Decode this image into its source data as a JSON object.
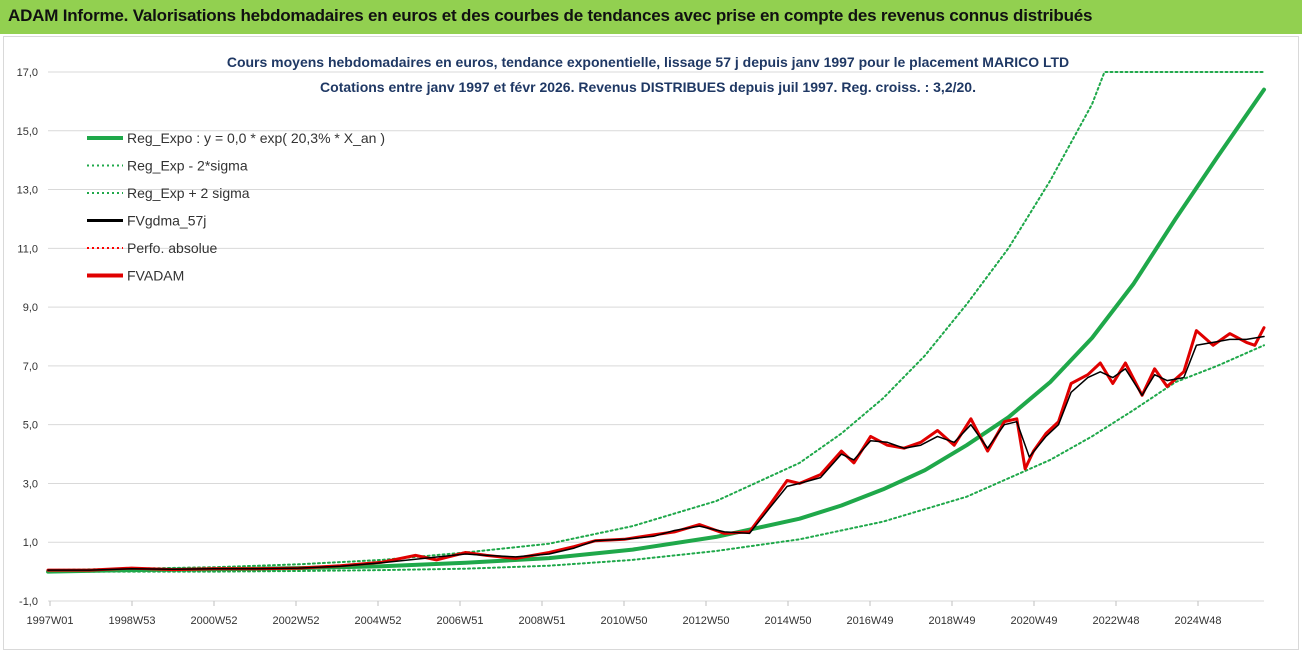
{
  "banner": {
    "title": "ADAM Informe. Valorisations hebdomadaires en euros et des courbes de tendances avec prise en compte des revenus connus distribués"
  },
  "colors": {
    "banner_bg": "#92d050",
    "trend": "#1fa84a",
    "band": "#1fa84a",
    "fvgdma": "#000000",
    "perfo": "#ff0000",
    "fvadam": "#e00000",
    "title": "#1f3864"
  },
  "chart_data": {
    "type": "line",
    "title": "Cours moyens hebdomadaires en euros, tendance exponentielle, lissage 57 j depuis janv 1997 pour le placement MARICO LTD",
    "subtitle": "Cotations entre janv 1997 et févr 2026. Revenus DISTRIBUES depuis juil 1997. Reg. croiss. : 3,2/20.",
    "xlabel": "",
    "ylabel": "",
    "ylim": [
      -1,
      17
    ],
    "y_ticks": [
      "-1,0",
      "1,0",
      "3,0",
      "5,0",
      "7,0",
      "9,0",
      "11,0",
      "13,0",
      "15,0",
      "17,0"
    ],
    "x_ticks": [
      "1997W01",
      "1998W53",
      "2000W52",
      "2002W52",
      "2004W52",
      "2006W51",
      "2008W51",
      "2010W50",
      "2012W50",
      "2014W50",
      "2016W49",
      "2018W49",
      "2020W49",
      "2022W48",
      "2024W48"
    ],
    "xlim": [
      1997.0,
      2026.12
    ],
    "grid": "horizontal",
    "legend_position": "top-left",
    "series": [
      {
        "name": "Reg_Expo : y = 0,0 * exp( 20,3% *  X_an )",
        "style": "solid-thick",
        "color": "#1fa84a",
        "x": [
          1997.0,
          1999.0,
          2001.0,
          2003.0,
          2005.0,
          2007.0,
          2009.0,
          2011.0,
          2013.0,
          2015.0,
          2016.0,
          2017.0,
          2018.0,
          2019.0,
          2020.0,
          2021.0,
          2022.0,
          2023.0,
          2024.0,
          2025.0,
          2026.12
        ],
        "values": [
          0.0,
          0.05,
          0.08,
          0.12,
          0.18,
          0.3,
          0.46,
          0.75,
          1.18,
          1.8,
          2.25,
          2.8,
          3.45,
          4.3,
          5.25,
          6.45,
          7.95,
          9.8,
          12.0,
          14.1,
          16.4
        ]
      },
      {
        "name": "Reg_Exp - 2*sigma",
        "style": "dotted",
        "color": "#1fa84a",
        "x": [
          1997.0,
          1999.0,
          2001.0,
          2003.0,
          2005.0,
          2007.0,
          2009.0,
          2011.0,
          2013.0,
          2015.0,
          2017.0,
          2019.0,
          2021.0,
          2022.0,
          2023.0,
          2024.0,
          2025.0,
          2026.12
        ],
        "values": [
          0.0,
          0.0,
          0.0,
          0.02,
          0.05,
          0.1,
          0.2,
          0.4,
          0.7,
          1.1,
          1.7,
          2.55,
          3.8,
          4.6,
          5.5,
          6.45,
          7.0,
          7.7
        ]
      },
      {
        "name": "Reg_Exp + 2 sigma",
        "style": "dotted",
        "color": "#1fa84a",
        "x": [
          1997.0,
          1999.0,
          2001.0,
          2003.0,
          2005.0,
          2007.0,
          2009.0,
          2011.0,
          2013.0,
          2015.0,
          2016.0,
          2017.0,
          2018.0,
          2019.0,
          2020.0,
          2021.0,
          2022.0,
          2022.3,
          2026.12
        ],
        "values": [
          0.05,
          0.1,
          0.15,
          0.25,
          0.4,
          0.65,
          0.95,
          1.55,
          2.4,
          3.7,
          4.7,
          5.9,
          7.35,
          9.1,
          11.0,
          13.3,
          15.9,
          17.0,
          17.0
        ]
      },
      {
        "name": "FVgdma_57j",
        "style": "solid-thin",
        "color": "#000000",
        "x": [
          1997.0,
          1998.0,
          1999.0,
          2000.0,
          2001.0,
          2002.0,
          2003.0,
          2004.0,
          2005.0,
          2006.0,
          2007.0,
          2007.5,
          2008.2,
          2009.0,
          2009.6,
          2010.1,
          2010.8,
          2011.5,
          2012.0,
          2012.6,
          2013.2,
          2013.8,
          2014.3,
          2014.7,
          2015.0,
          2015.5,
          2016.0,
          2016.3,
          2016.7,
          2017.1,
          2017.5,
          2017.9,
          2018.3,
          2018.7,
          2019.1,
          2019.5,
          2019.9,
          2020.2,
          2020.5,
          2020.9,
          2021.2,
          2021.5,
          2021.9,
          2022.2,
          2022.5,
          2022.8,
          2023.2,
          2023.5,
          2023.8,
          2024.2,
          2024.5,
          2024.9,
          2025.3,
          2025.7,
          2026.12
        ],
        "values": [
          0.05,
          0.05,
          0.1,
          0.08,
          0.1,
          0.1,
          0.12,
          0.18,
          0.3,
          0.45,
          0.6,
          0.55,
          0.5,
          0.6,
          0.8,
          1.05,
          1.1,
          1.2,
          1.4,
          1.55,
          1.35,
          1.3,
          2.2,
          2.9,
          3.0,
          3.2,
          4.0,
          3.8,
          4.45,
          4.4,
          4.2,
          4.3,
          4.6,
          4.4,
          5.0,
          4.2,
          5.0,
          5.1,
          3.9,
          4.6,
          5.0,
          6.1,
          6.6,
          6.8,
          6.6,
          6.9,
          6.0,
          6.7,
          6.5,
          6.6,
          7.7,
          7.8,
          7.9,
          7.9,
          8.0
        ]
      },
      {
        "name": "Perfo. absolue",
        "style": "dotted",
        "color": "#ff0000",
        "x": [
          1997.0,
          2026.12
        ],
        "values": [
          0.05,
          8.0
        ]
      },
      {
        "name": "FVADAM",
        "style": "solid-thick",
        "color": "#e00000",
        "x": [
          1997.0,
          1998.0,
          1999.0,
          2000.0,
          2001.0,
          2002.0,
          2003.0,
          2004.0,
          2005.0,
          2005.8,
          2006.3,
          2007.0,
          2007.5,
          2008.2,
          2009.0,
          2009.6,
          2010.1,
          2010.8,
          2011.5,
          2012.0,
          2012.6,
          2013.2,
          2013.8,
          2014.3,
          2014.7,
          2015.0,
          2015.5,
          2016.0,
          2016.3,
          2016.7,
          2017.1,
          2017.5,
          2017.9,
          2018.3,
          2018.7,
          2019.1,
          2019.5,
          2019.9,
          2020.2,
          2020.4,
          2020.6,
          2020.9,
          2021.2,
          2021.5,
          2021.9,
          2022.2,
          2022.5,
          2022.8,
          2023.2,
          2023.5,
          2023.8,
          2024.2,
          2024.5,
          2024.9,
          2025.3,
          2025.7,
          2025.9,
          2026.12
        ],
        "values": [
          0.05,
          0.05,
          0.12,
          0.07,
          0.1,
          0.1,
          0.12,
          0.2,
          0.32,
          0.55,
          0.4,
          0.65,
          0.55,
          0.45,
          0.65,
          0.85,
          1.05,
          1.1,
          1.25,
          1.35,
          1.6,
          1.3,
          1.35,
          2.3,
          3.1,
          3.0,
          3.3,
          4.1,
          3.7,
          4.6,
          4.3,
          4.2,
          4.4,
          4.8,
          4.3,
          5.2,
          4.1,
          5.1,
          5.2,
          3.5,
          4.1,
          4.7,
          5.1,
          6.4,
          6.7,
          7.1,
          6.4,
          7.1,
          6.0,
          6.9,
          6.3,
          6.8,
          8.2,
          7.7,
          8.1,
          7.8,
          7.7,
          8.3
        ]
      }
    ]
  }
}
